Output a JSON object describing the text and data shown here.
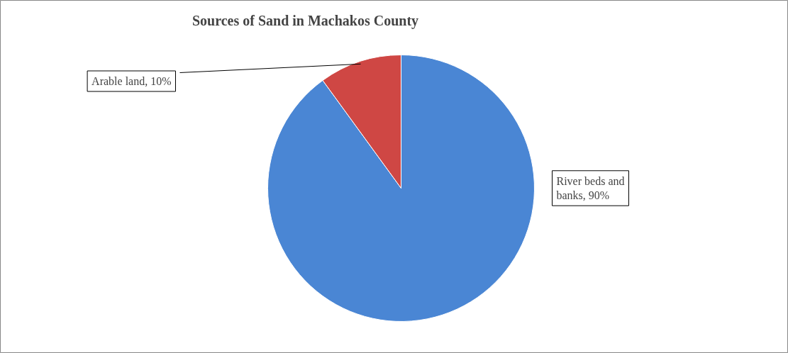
{
  "chart_data": {
    "type": "pie",
    "title": "Sources of Sand in Machakos County",
    "categories": [
      "River beds and banks",
      "Arable land"
    ],
    "values": [
      90,
      10
    ],
    "value_labels": [
      "90%",
      "10%"
    ],
    "colors": [
      "#4a86d4",
      "#cf4744"
    ]
  }
}
